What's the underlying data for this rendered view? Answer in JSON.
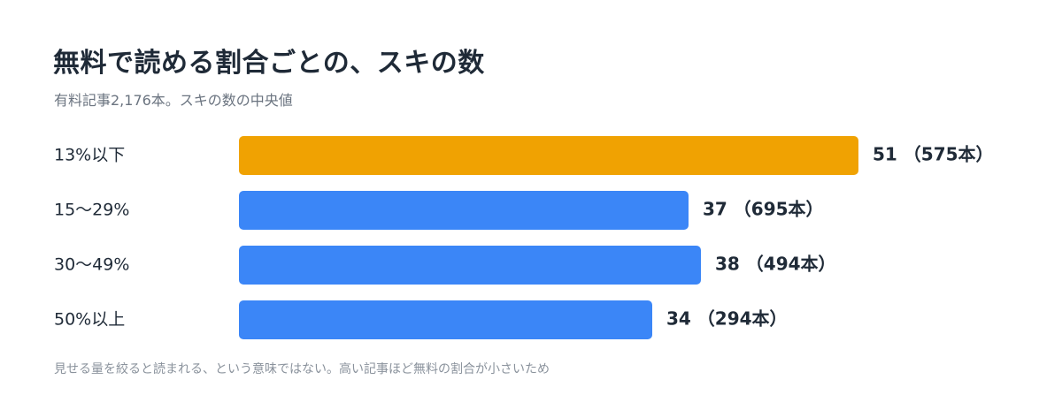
{
  "title": "無料で読める割合ごとの、スキの数",
  "subtitle": "有料記事2,176本。スキの数の中央値",
  "note": "見せる量を絞ると読まれる、という意味ではない。高い記事ほど無料の割合が小さいため",
  "colors": {
    "highlight": "#f0a202",
    "bar": "#3b86f7",
    "label": "#1f2a37",
    "value": "#1f2a37"
  },
  "chart_data": {
    "type": "bar",
    "orientation": "horizontal",
    "title": "無料で読める割合ごとの、スキの数",
    "subtitle": "有料記事2,176本。スキの数の中央値",
    "categories": [
      "13%以下",
      "15〜29%",
      "30〜49%",
      "50%以上"
    ],
    "values": [
      51,
      37,
      38,
      34
    ],
    "counts": [
      "575本",
      "695本",
      "494本",
      "294本"
    ],
    "value_labels": [
      "51 （575本）",
      "37 （695本）",
      "38 （494本）",
      "34 （294本）"
    ],
    "highlight_index": 0,
    "xlim": [
      0,
      51
    ],
    "grid": false,
    "legend": "none"
  }
}
